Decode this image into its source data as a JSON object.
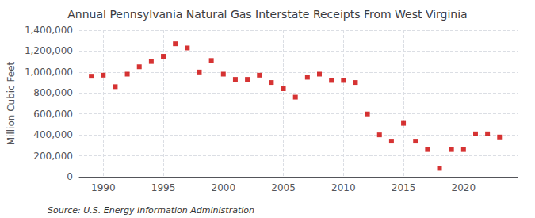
{
  "chart_data": {
    "type": "scatter",
    "title": "Annual Pennsylvania Natural Gas Interstate Receipts From West Virginia",
    "ylabel": "Million Cubic Feet",
    "annotation": "Source: U.S. Energy Information Administration",
    "x": [
      1989,
      1990,
      1991,
      1992,
      1993,
      1994,
      1995,
      1996,
      1997,
      1998,
      1999,
      2000,
      2001,
      2002,
      2003,
      2004,
      2005,
      2006,
      2007,
      2008,
      2009,
      2010,
      2011,
      2012,
      2013,
      2014,
      2015,
      2016,
      2017,
      2018,
      2019,
      2020,
      2021,
      2022,
      2023
    ],
    "values": [
      960000,
      970000,
      860000,
      980000,
      1050000,
      1100000,
      1150000,
      1270000,
      1230000,
      1000000,
      1110000,
      980000,
      930000,
      930000,
      970000,
      900000,
      840000,
      760000,
      950000,
      980000,
      920000,
      920000,
      900000,
      600000,
      400000,
      340000,
      510000,
      340000,
      260000,
      80000,
      260000,
      260000,
      410000,
      410000,
      380000
    ],
    "color": "#cc0000",
    "marker": "square",
    "xlim": [
      1988.0,
      2024.5
    ],
    "xticks": [
      1990,
      1995,
      2000,
      2005,
      2010,
      2015,
      2020
    ],
    "ylim": [
      0,
      1400000
    ],
    "yticks": [
      0,
      {
        "value": 200000,
        "label": "200,000"
      },
      {
        "value": 400000,
        "label": "400,000"
      },
      {
        "value": 600000,
        "label": "600,000"
      },
      {
        "value": 800000,
        "label": "800,000"
      },
      {
        "value": 1000000,
        "label": "1,000,000"
      },
      {
        "value": 1200000,
        "label": "1,200,000"
      },
      {
        "value": 1400000,
        "label": "1,400,000"
      }
    ],
    "grid": true
  }
}
